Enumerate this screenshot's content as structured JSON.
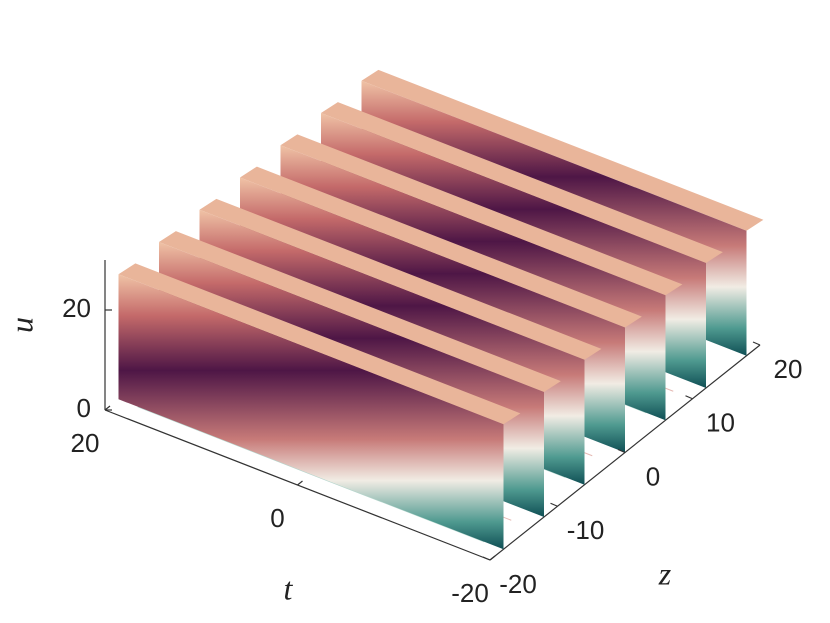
{
  "chart_data": {
    "type": "surface",
    "xlabel": "t",
    "ylabel": "z",
    "zlabel": "u",
    "xlim": [
      20,
      -20
    ],
    "xticks": [
      20,
      0,
      -20
    ],
    "ylim": [
      -20,
      20
    ],
    "yticks": [
      -20,
      -10,
      0,
      10,
      20
    ],
    "zlim": [
      0,
      30
    ],
    "zticks": [
      0,
      20
    ],
    "ridge_z": [
      -18,
      -12,
      -6,
      0,
      6,
      12,
      18
    ],
    "ridge_u": [
      25,
      25,
      25,
      25,
      25,
      25,
      25
    ]
  }
}
